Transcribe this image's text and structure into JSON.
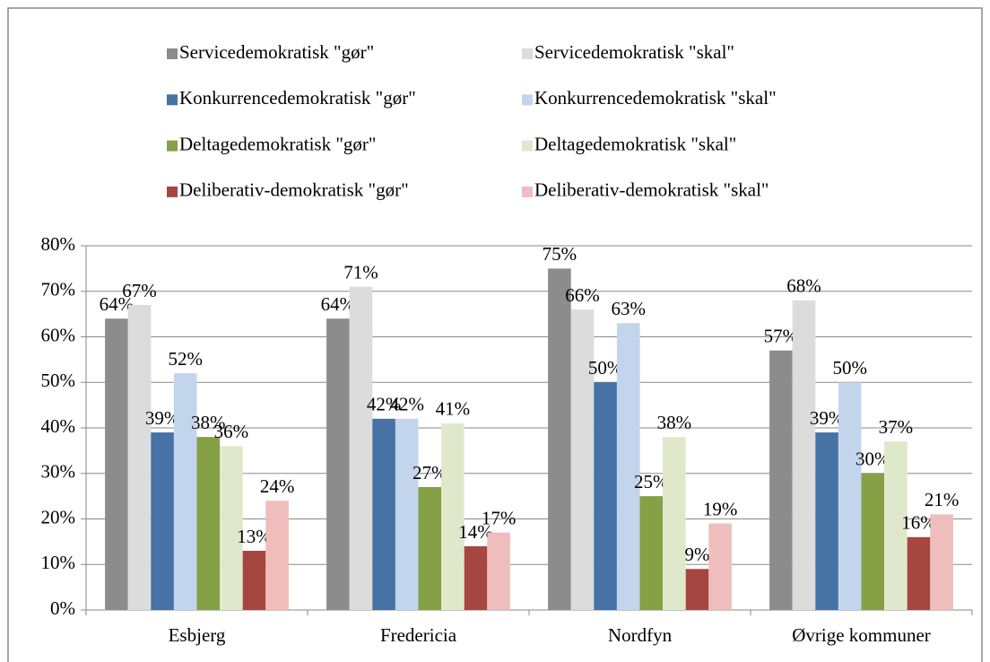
{
  "chart_data": {
    "type": "bar",
    "categories": [
      "Esbjerg",
      "Fredericia",
      "Nordfyn",
      "Øvrige kommuner"
    ],
    "series": [
      {
        "name": "Servicedemokratisk \"gør\"",
        "color": "#8c8c8c",
        "values": [
          64,
          64,
          75,
          57
        ],
        "value_labels": [
          "64%",
          "64%",
          "75%",
          "57%"
        ]
      },
      {
        "name": "Servicedemokratisk \"skal\"",
        "color": "#dcdcdc",
        "values": [
          67,
          71,
          66,
          68
        ],
        "value_labels": [
          "67%",
          "71%",
          "66%",
          "68%"
        ]
      },
      {
        "name": "Konkurrencedemokratisk \"gør\"",
        "color": "#4672a6",
        "values": [
          39,
          42,
          50,
          39
        ],
        "value_labels": [
          "39%",
          "42%",
          "50%",
          "39%"
        ]
      },
      {
        "name": "Konkurrencedemokratisk \"skal\"",
        "color": "#c3d5ec",
        "values": [
          52,
          42,
          63,
          50
        ],
        "value_labels": [
          "52%",
          "42%",
          "63%",
          "50%"
        ]
      },
      {
        "name": "Deltagedemokratisk \"gør\"",
        "color": "#86a045",
        "values": [
          38,
          27,
          25,
          30
        ],
        "value_labels": [
          "38%",
          "27%",
          "25%",
          "30%"
        ]
      },
      {
        "name": "Deltagedemokratisk \"skal\"",
        "color": "#e0e8cc",
        "values": [
          36,
          41,
          38,
          37
        ],
        "value_labels": [
          "36%",
          "41%",
          "38%",
          "37%"
        ]
      },
      {
        "name": "Deliberativ-demokratisk \"gør\"",
        "color": "#a64641",
        "values": [
          13,
          14,
          9,
          16
        ],
        "value_labels": [
          "13%",
          "14%",
          "9%",
          "16%"
        ]
      },
      {
        "name": "Deliberativ-demokratisk \"skal\"",
        "color": "#efbdbc",
        "values": [
          24,
          17,
          19,
          21
        ],
        "value_labels": [
          "24%",
          "17%",
          "19%",
          "21%"
        ]
      }
    ],
    "ylim": [
      0,
      80
    ],
    "yticks": [
      {
        "value": 0,
        "label": "0%"
      },
      {
        "value": 10,
        "label": "10%"
      },
      {
        "value": 20,
        "label": "20%"
      },
      {
        "value": 30,
        "label": "30%"
      },
      {
        "value": 40,
        "label": "40%"
      },
      {
        "value": 50,
        "label": "50%"
      },
      {
        "value": 60,
        "label": "60%"
      },
      {
        "value": 70,
        "label": "70%"
      },
      {
        "value": 80,
        "label": "80%"
      }
    ],
    "grid": true
  }
}
